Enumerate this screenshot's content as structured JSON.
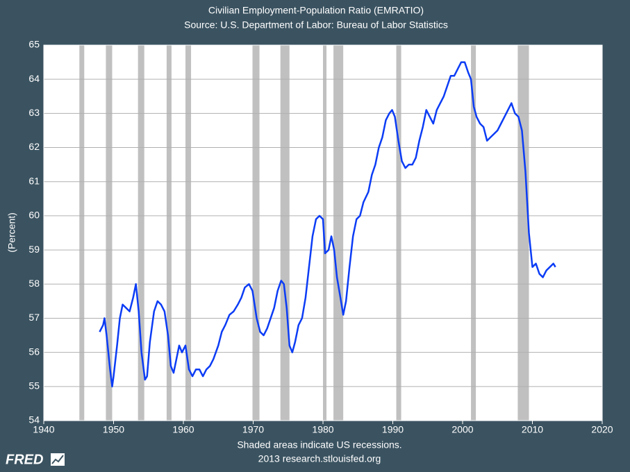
{
  "chart_data": {
    "type": "line",
    "title": "Civilian Employment-Population Ratio (EMRATIO)",
    "subtitle": "Source: U.S. Department of Labor: Bureau of Labor Statistics",
    "y_label": "(Percent)",
    "footnote": "Shaded areas indicate US recessions.",
    "source_line": "2013 research.stlouisfed.org",
    "logo": "FRED",
    "color": "#0b3cf5",
    "recession_color": "#c0c0c0",
    "grid": true,
    "xlim": [
      1940,
      2020
    ],
    "xticks": [
      1940,
      1950,
      1960,
      1970,
      1980,
      1990,
      2000,
      2010,
      2020
    ],
    "ylim": [
      54,
      65
    ],
    "yticks": [
      54,
      55,
      56,
      57,
      58,
      59,
      60,
      61,
      62,
      63,
      64,
      65
    ],
    "recessions": [
      [
        1945.1,
        1945.8
      ],
      [
        1948.9,
        1949.8
      ],
      [
        1953.5,
        1954.4
      ],
      [
        1957.6,
        1958.3
      ],
      [
        1960.3,
        1961.1
      ],
      [
        1969.9,
        1970.9
      ],
      [
        1973.9,
        1975.2
      ],
      [
        1980.0,
        1980.5
      ],
      [
        1981.5,
        1982.9
      ],
      [
        1990.5,
        1991.2
      ],
      [
        2001.2,
        2001.9
      ],
      [
        2007.9,
        2009.5
      ]
    ],
    "x": [
      1948.0,
      1948.5,
      1948.7,
      1949.0,
      1949.5,
      1949.8,
      1950.0,
      1950.5,
      1950.9,
      1951.3,
      1951.8,
      1952.3,
      1952.8,
      1953.2,
      1953.6,
      1954.0,
      1954.5,
      1954.8,
      1955.2,
      1955.8,
      1956.3,
      1956.8,
      1957.3,
      1957.8,
      1958.2,
      1958.6,
      1959.0,
      1959.4,
      1959.8,
      1960.3,
      1960.8,
      1961.3,
      1961.8,
      1962.3,
      1962.8,
      1963.3,
      1963.8,
      1964.3,
      1965.0,
      1965.5,
      1966.0,
      1966.6,
      1967.2,
      1967.8,
      1968.3,
      1968.8,
      1969.4,
      1969.9,
      1970.5,
      1971.0,
      1971.5,
      1972.0,
      1972.5,
      1973.0,
      1973.5,
      1974.0,
      1974.4,
      1974.8,
      1975.2,
      1975.6,
      1976.0,
      1976.5,
      1977.0,
      1977.5,
      1978.0,
      1978.5,
      1979.0,
      1979.5,
      1980.0,
      1980.3,
      1980.8,
      1981.2,
      1981.6,
      1982.0,
      1982.5,
      1982.9,
      1983.3,
      1983.8,
      1984.3,
      1984.8,
      1985.3,
      1985.8,
      1986.5,
      1987.0,
      1987.5,
      1988.0,
      1988.5,
      1989.0,
      1989.5,
      1989.9,
      1990.3,
      1990.8,
      1991.3,
      1991.8,
      1992.3,
      1992.8,
      1993.3,
      1993.8,
      1994.3,
      1994.8,
      1995.3,
      1995.8,
      1996.3,
      1996.8,
      1997.3,
      1997.8,
      1998.3,
      1998.8,
      1999.3,
      1999.8,
      2000.3,
      2000.8,
      2001.2,
      2001.6,
      2002.0,
      2002.5,
      2003.0,
      2003.5,
      2004.0,
      2004.5,
      2005.0,
      2005.5,
      2006.0,
      2006.5,
      2007.0,
      2007.5,
      2008.0,
      2008.5,
      2009.0,
      2009.5,
      2010.0,
      2010.5,
      2011.0,
      2011.5,
      2012.0,
      2012.5,
      2013.0,
      2013.3
    ],
    "values": [
      56.6,
      56.8,
      57.0,
      56.5,
      55.5,
      55.0,
      55.3,
      56.2,
      57.0,
      57.4,
      57.3,
      57.2,
      57.6,
      58.0,
      57.2,
      56.0,
      55.2,
      55.3,
      56.3,
      57.2,
      57.5,
      57.4,
      57.2,
      56.5,
      55.6,
      55.4,
      55.8,
      56.2,
      56.0,
      56.2,
      55.5,
      55.3,
      55.5,
      55.5,
      55.3,
      55.5,
      55.6,
      55.8,
      56.2,
      56.6,
      56.8,
      57.1,
      57.2,
      57.4,
      57.6,
      57.9,
      58.0,
      57.8,
      57.0,
      56.6,
      56.5,
      56.7,
      57.0,
      57.3,
      57.8,
      58.1,
      58.0,
      57.3,
      56.2,
      56.0,
      56.3,
      56.8,
      57.0,
      57.6,
      58.5,
      59.4,
      59.9,
      60.0,
      59.9,
      58.9,
      59.0,
      59.4,
      59.0,
      58.2,
      57.6,
      57.1,
      57.5,
      58.5,
      59.4,
      59.9,
      60.0,
      60.4,
      60.7,
      61.2,
      61.5,
      62.0,
      62.3,
      62.8,
      63.0,
      63.1,
      62.9,
      62.2,
      61.6,
      61.4,
      61.5,
      61.5,
      61.7,
      62.2,
      62.6,
      63.1,
      62.9,
      62.7,
      63.1,
      63.3,
      63.5,
      63.8,
      64.1,
      64.1,
      64.3,
      64.5,
      64.5,
      64.2,
      64.0,
      63.2,
      62.9,
      62.7,
      62.6,
      62.2,
      62.3,
      62.4,
      62.5,
      62.7,
      62.9,
      63.1,
      63.3,
      63.0,
      62.9,
      62.5,
      61.3,
      59.5,
      58.5,
      58.6,
      58.3,
      58.2,
      58.4,
      58.5,
      58.6,
      58.5
    ]
  }
}
